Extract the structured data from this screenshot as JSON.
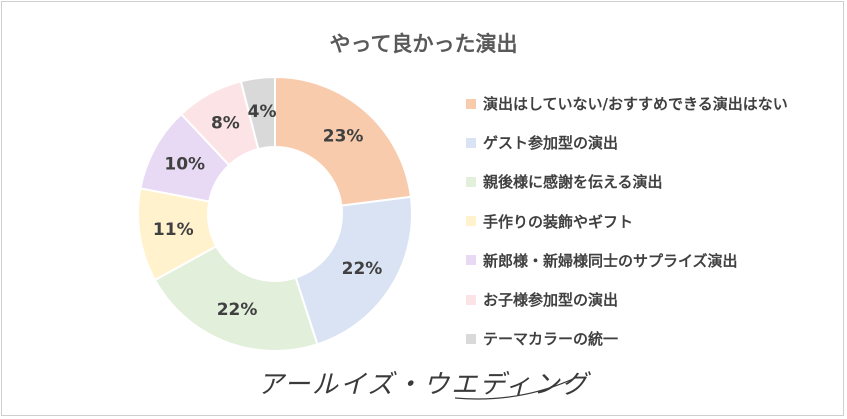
{
  "chart_data": {
    "type": "pie",
    "variant": "donut",
    "title": "やって良かった演出",
    "categories": [
      "演出はしていない/おすすめできる演出はない",
      "ゲスト参加型の演出",
      "親後様に感謝を伝える演出",
      "手作りの装飾やギフト",
      "新郎様・新婦様同士のサプライズ演出",
      "お子様参加型の演出",
      "テーマカラーの統一"
    ],
    "values": [
      23,
      22,
      22,
      11,
      10,
      8,
      4
    ],
    "labels": [
      "23%",
      "22%",
      "22%",
      "11%",
      "10%",
      "8%",
      "4%"
    ],
    "colors": [
      "#f8cbad",
      "#dae3f3",
      "#e2efda",
      "#fff2cc",
      "#e8d9f4",
      "#fce4e6",
      "#d9d9d9"
    ],
    "legend_position": "right",
    "start_angle": "top, clockwise"
  },
  "logo": {
    "text": "アールイズ・ウエディング"
  }
}
